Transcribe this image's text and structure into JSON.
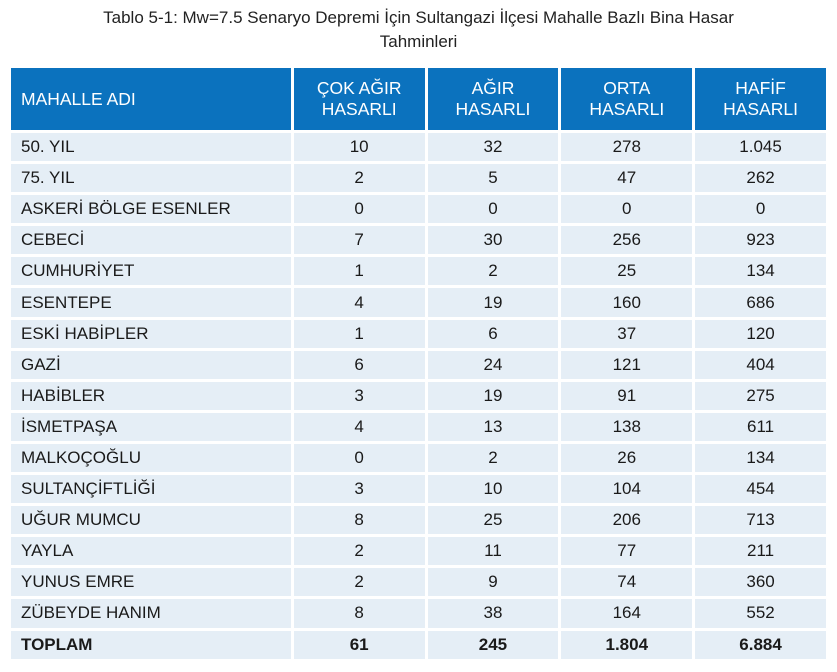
{
  "caption": {
    "line1": "Tablo 5-1: Mw=7.5 Senaryo Depremi İçin Sultangazi İlçesi Mahalle Bazlı Bina Hasar",
    "line2": "Tahminleri"
  },
  "header": {
    "name": "MAHALLE ADI",
    "cok_agir": [
      "ÇOK AĞIR",
      "HASARLI"
    ],
    "agir": [
      "AĞIR",
      "HASARLI"
    ],
    "orta": [
      "ORTA",
      "HASARLI"
    ],
    "hafif": [
      "HAFİF",
      "HASARLI"
    ]
  },
  "rows": [
    {
      "name": "50. YIL",
      "cok_agir": "10",
      "agir": "32",
      "orta": "278",
      "hafif": "1.045"
    },
    {
      "name": "75. YIL",
      "cok_agir": "2",
      "agir": "5",
      "orta": "47",
      "hafif": "262"
    },
    {
      "name": "ASKERİ BÖLGE ESENLER",
      "cok_agir": "0",
      "agir": "0",
      "orta": "0",
      "hafif": "0"
    },
    {
      "name": "CEBECİ",
      "cok_agir": "7",
      "agir": "30",
      "orta": "256",
      "hafif": "923"
    },
    {
      "name": "CUMHURİYET",
      "cok_agir": "1",
      "agir": "2",
      "orta": "25",
      "hafif": "134"
    },
    {
      "name": "ESENTEPE",
      "cok_agir": "4",
      "agir": "19",
      "orta": "160",
      "hafif": "686"
    },
    {
      "name": "ESKİ HABİPLER",
      "cok_agir": "1",
      "agir": "6",
      "orta": "37",
      "hafif": "120"
    },
    {
      "name": "GAZİ",
      "cok_agir": "6",
      "agir": "24",
      "orta": "121",
      "hafif": "404"
    },
    {
      "name": "HABİBLER",
      "cok_agir": "3",
      "agir": "19",
      "orta": "91",
      "hafif": "275"
    },
    {
      "name": "İSMETPAŞA",
      "cok_agir": "4",
      "agir": "13",
      "orta": "138",
      "hafif": "611"
    },
    {
      "name": "MALKOÇOĞLU",
      "cok_agir": "0",
      "agir": "2",
      "orta": "26",
      "hafif": "134"
    },
    {
      "name": "SULTANÇİFTLİĞİ",
      "cok_agir": "3",
      "agir": "10",
      "orta": "104",
      "hafif": "454"
    },
    {
      "name": "UĞUR MUMCU",
      "cok_agir": "8",
      "agir": "25",
      "orta": "206",
      "hafif": "713"
    },
    {
      "name": "YAYLA",
      "cok_agir": "2",
      "agir": "11",
      "orta": "77",
      "hafif": "211"
    },
    {
      "name": "YUNUS EMRE",
      "cok_agir": "2",
      "agir": "9",
      "orta": "74",
      "hafif": "360"
    },
    {
      "name": "ZÜBEYDE HANIM",
      "cok_agir": "8",
      "agir": "38",
      "orta": "164",
      "hafif": "552"
    }
  ],
  "total": {
    "name": "TOPLAM",
    "cok_agir": "61",
    "agir": "245",
    "orta": "1.804",
    "hafif": "6.884"
  },
  "colors": {
    "header_bg": "#0b72be",
    "row_bg": "#e5eef6",
    "header_text": "#ffffff"
  }
}
